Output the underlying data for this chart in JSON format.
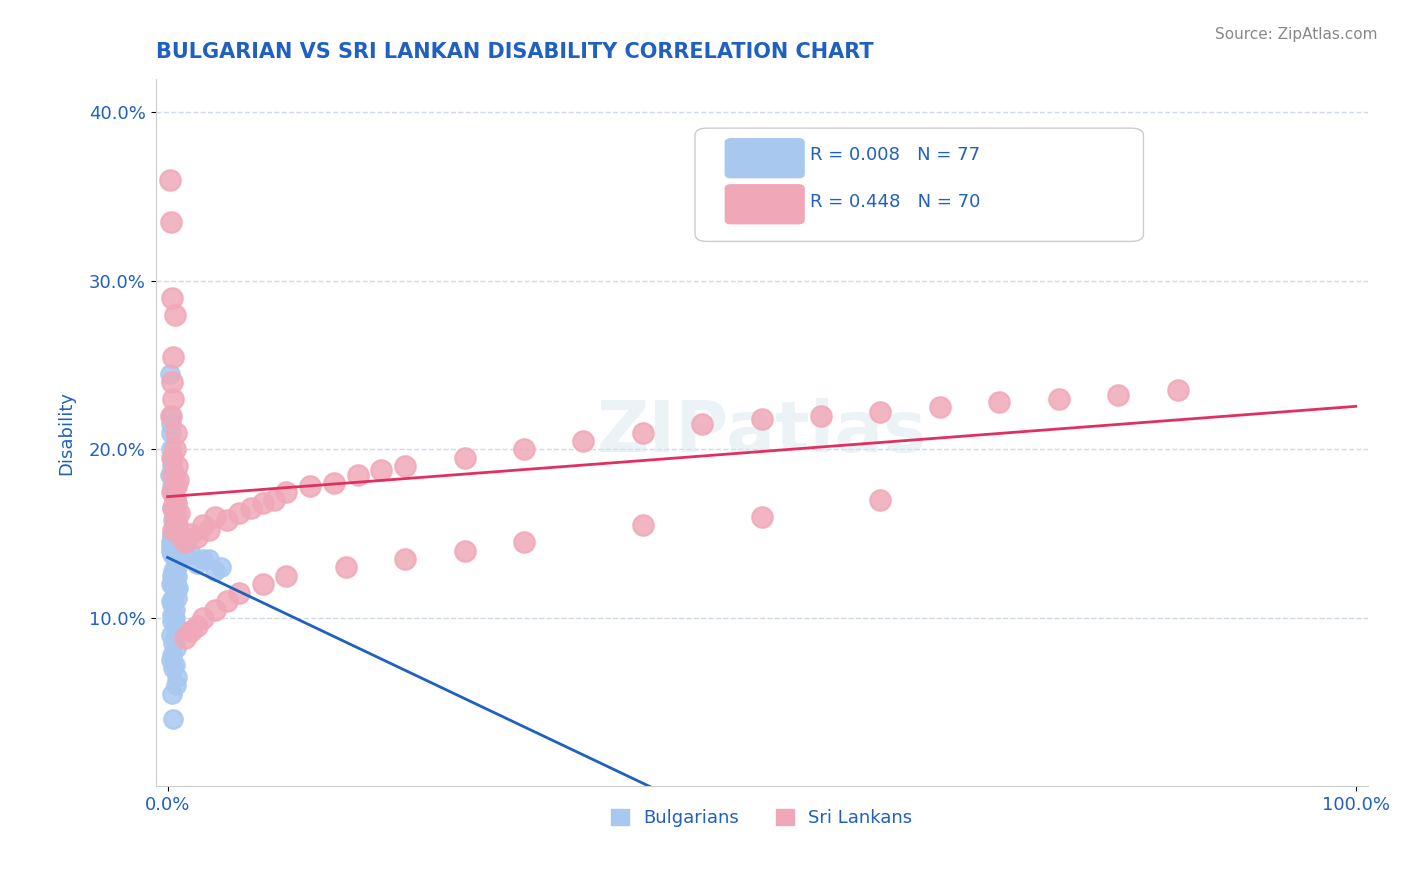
{
  "title": "BULGARIAN VS SRI LANKAN DISABILITY CORRELATION CHART",
  "source": "Source: ZipAtlas.com",
  "xlabel": "",
  "ylabel": "Disability",
  "xlim": [
    0.0,
    1.0
  ],
  "ylim": [
    0.0,
    0.42
  ],
  "yticks": [
    0.1,
    0.2,
    0.3,
    0.4
  ],
  "ytick_labels": [
    "10.0%",
    "20.0%",
    "30.0%",
    "40.0%"
  ],
  "xticks": [
    0.0,
    1.0
  ],
  "xtick_labels": [
    "0.0%",
    "100.0%"
  ],
  "legend_labels": [
    "Bulgarians",
    "Sri Lankans"
  ],
  "r_bulgarian": 0.008,
  "n_bulgarian": 77,
  "r_sri_lankan": 0.448,
  "n_sri_lankan": 70,
  "bulgarian_color": "#a8c8f0",
  "sri_lankan_color": "#f0a8b8",
  "bulgarian_line_color": "#2060c0",
  "sri_lankan_line_color": "#e03060",
  "title_color": "#2060c0",
  "axis_label_color": "#2060c0",
  "tick_label_color": "#2060c0",
  "source_color": "#888888",
  "legend_r_color": "#2060c0",
  "watermark": "ZIPatlas",
  "background_color": "#ffffff",
  "grid_color": "#d0d8e8",
  "bulgarian_scatter": {
    "x": [
      0.002,
      0.003,
      0.004,
      0.002,
      0.003,
      0.005,
      0.004,
      0.003,
      0.006,
      0.004,
      0.007,
      0.005,
      0.006,
      0.008,
      0.004,
      0.003,
      0.005,
      0.006,
      0.007,
      0.005,
      0.004,
      0.003,
      0.006,
      0.005,
      0.008,
      0.007,
      0.009,
      0.004,
      0.003,
      0.006,
      0.01,
      0.008,
      0.005,
      0.007,
      0.006,
      0.004,
      0.003,
      0.005,
      0.008,
      0.006,
      0.007,
      0.009,
      0.004,
      0.005,
      0.006,
      0.003,
      0.008,
      0.007,
      0.004,
      0.005,
      0.006,
      0.003,
      0.004,
      0.005,
      0.006,
      0.007,
      0.008,
      0.004,
      0.003,
      0.006,
      0.007,
      0.005,
      0.004,
      0.003,
      0.006,
      0.005,
      0.008,
      0.007,
      0.004,
      0.005,
      0.035,
      0.02,
      0.025,
      0.015,
      0.04,
      0.03,
      0.045
    ],
    "y": [
      0.245,
      0.215,
      0.195,
      0.185,
      0.2,
      0.175,
      0.165,
      0.22,
      0.185,
      0.178,
      0.17,
      0.18,
      0.16,
      0.155,
      0.19,
      0.21,
      0.175,
      0.168,
      0.162,
      0.158,
      0.15,
      0.145,
      0.155,
      0.148,
      0.152,
      0.145,
      0.142,
      0.148,
      0.14,
      0.138,
      0.135,
      0.13,
      0.14,
      0.132,
      0.136,
      0.138,
      0.142,
      0.128,
      0.125,
      0.13,
      0.122,
      0.118,
      0.125,
      0.12,
      0.115,
      0.12,
      0.112,
      0.118,
      0.108,
      0.112,
      0.105,
      0.11,
      0.102,
      0.108,
      0.1,
      0.095,
      0.092,
      0.098,
      0.09,
      0.088,
      0.082,
      0.085,
      0.078,
      0.075,
      0.072,
      0.07,
      0.065,
      0.06,
      0.055,
      0.04,
      0.135,
      0.138,
      0.132,
      0.14,
      0.128,
      0.135,
      0.13
    ]
  },
  "sri_lankan_scatter": {
    "x": [
      0.002,
      0.004,
      0.003,
      0.005,
      0.006,
      0.004,
      0.003,
      0.005,
      0.007,
      0.004,
      0.006,
      0.005,
      0.008,
      0.007,
      0.009,
      0.006,
      0.004,
      0.005,
      0.007,
      0.006,
      0.01,
      0.008,
      0.005,
      0.012,
      0.015,
      0.02,
      0.025,
      0.03,
      0.035,
      0.04,
      0.05,
      0.06,
      0.07,
      0.08,
      0.09,
      0.1,
      0.12,
      0.14,
      0.16,
      0.18,
      0.2,
      0.25,
      0.3,
      0.35,
      0.4,
      0.45,
      0.5,
      0.55,
      0.6,
      0.65,
      0.7,
      0.75,
      0.8,
      0.85,
      0.02,
      0.015,
      0.025,
      0.03,
      0.04,
      0.05,
      0.06,
      0.08,
      0.1,
      0.15,
      0.2,
      0.25,
      0.3,
      0.4,
      0.5,
      0.6
    ],
    "y": [
      0.36,
      0.29,
      0.335,
      0.255,
      0.28,
      0.24,
      0.22,
      0.23,
      0.21,
      0.195,
      0.2,
      0.185,
      0.19,
      0.178,
      0.182,
      0.17,
      0.175,
      0.165,
      0.168,
      0.16,
      0.162,
      0.155,
      0.152,
      0.148,
      0.145,
      0.15,
      0.148,
      0.155,
      0.152,
      0.16,
      0.158,
      0.162,
      0.165,
      0.168,
      0.17,
      0.175,
      0.178,
      0.18,
      0.185,
      0.188,
      0.19,
      0.195,
      0.2,
      0.205,
      0.21,
      0.215,
      0.218,
      0.22,
      0.222,
      0.225,
      0.228,
      0.23,
      0.232,
      0.235,
      0.092,
      0.088,
      0.095,
      0.1,
      0.105,
      0.11,
      0.115,
      0.12,
      0.125,
      0.13,
      0.135,
      0.14,
      0.145,
      0.155,
      0.16,
      0.17
    ]
  }
}
